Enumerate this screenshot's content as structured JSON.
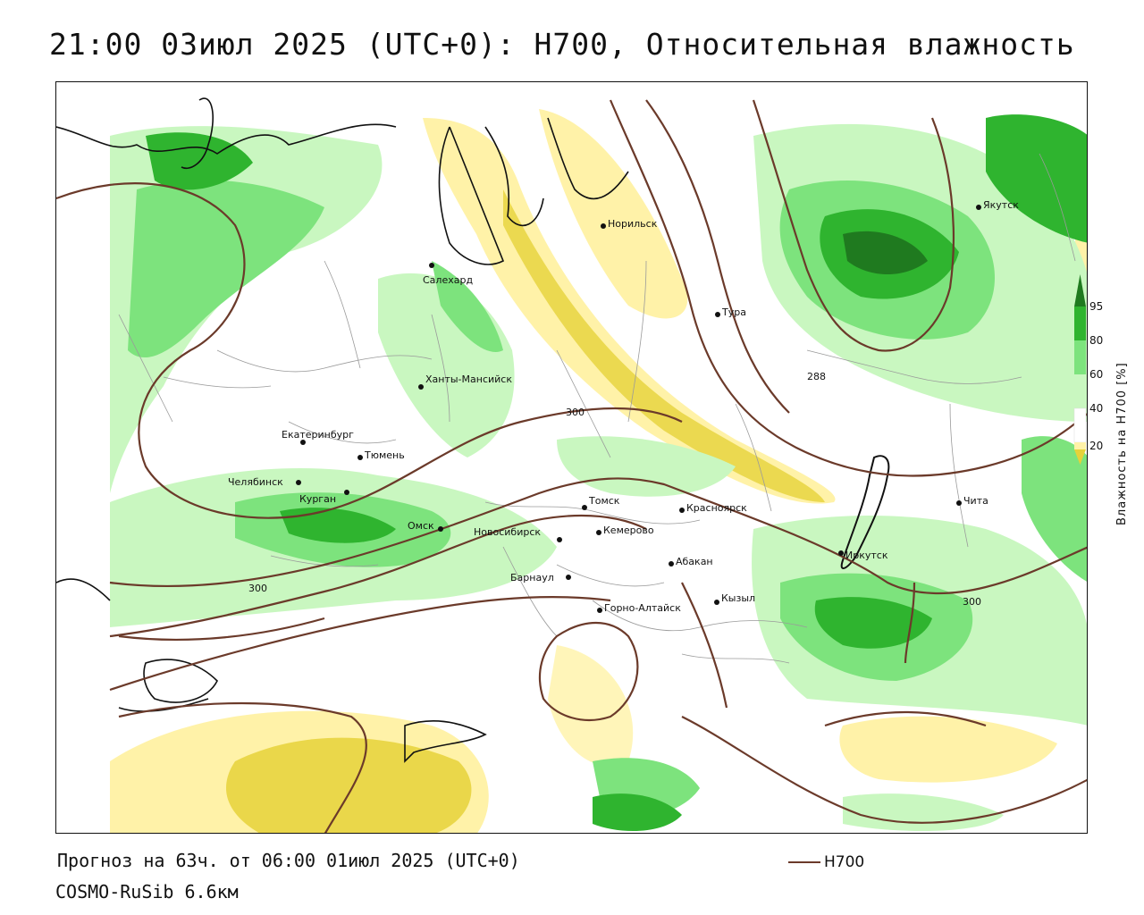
{
  "title": "21:00 03июл 2025 (UTC+0): H700, Относительная влажность",
  "forecast_info": "Прогноз на 63ч. от 06:00 01июл 2025 (UTC+0)",
  "model": "COSMO-RuSib 6.6км",
  "legend": {
    "label": "H700",
    "color": "#6b3a2a"
  },
  "colorbar": {
    "title": "Влажность на H700 [%]",
    "ticks": [
      "95",
      "80",
      "60",
      "40",
      "20"
    ],
    "colors": [
      "#1f7a1f",
      "#2fb42f",
      "#7de37d",
      "#c9f7c0",
      "#ffffff",
      "#fff2a8",
      "#e6d23a"
    ]
  },
  "cities": [
    {
      "name": "Норильск"
    },
    {
      "name": "Якутск"
    },
    {
      "name": "Салехард"
    },
    {
      "name": "Тура"
    },
    {
      "name": "Ханты-Мансийск"
    },
    {
      "name": "Екатеринбург"
    },
    {
      "name": "Тюмень"
    },
    {
      "name": "Челябинск"
    },
    {
      "name": "Курган"
    },
    {
      "name": "Омск"
    },
    {
      "name": "Новосибирск"
    },
    {
      "name": "Томск"
    },
    {
      "name": "Кемерово"
    },
    {
      "name": "Красноярск"
    },
    {
      "name": "Абакан"
    },
    {
      "name": "Барнаул"
    },
    {
      "name": "Горно-Алтайск"
    },
    {
      "name": "Кызыл"
    },
    {
      "name": "Иркутск"
    },
    {
      "name": "Чита"
    }
  ],
  "contour_labels": [
    "300",
    "288",
    "300",
    "300"
  ]
}
